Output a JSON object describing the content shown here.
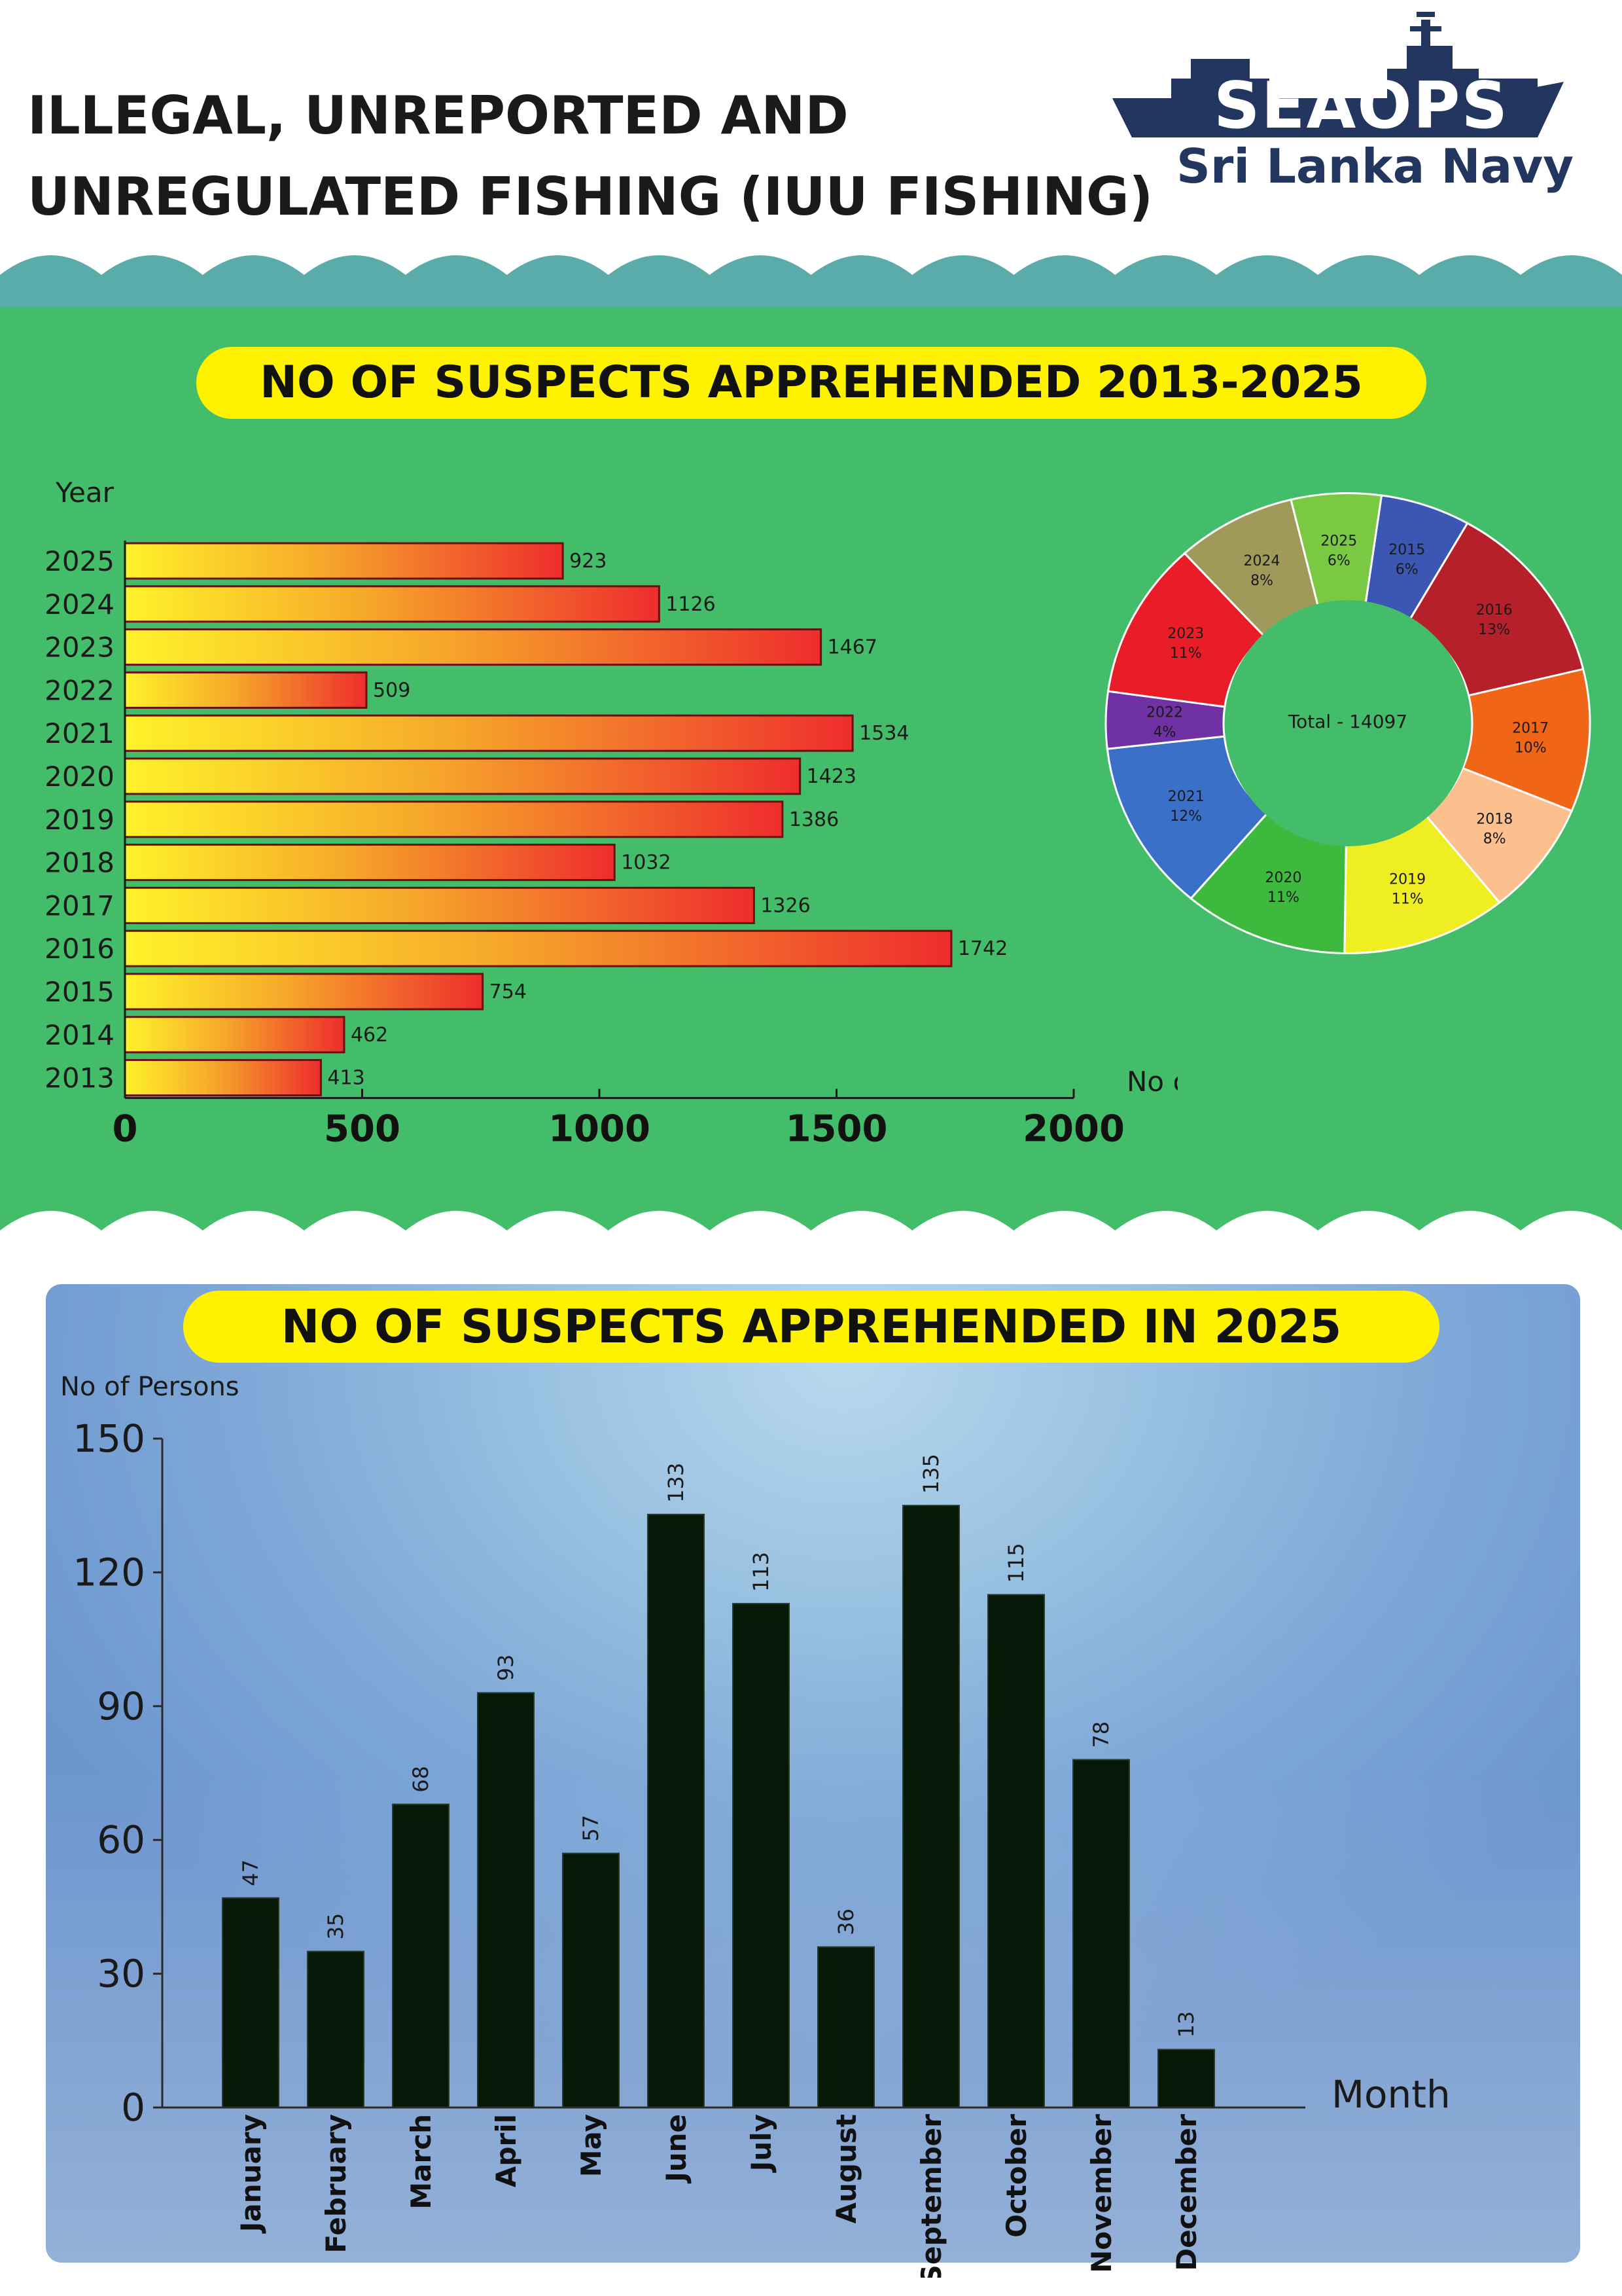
{
  "header": {
    "title_line1": "ILLEGAL, UNREPORTED AND",
    "title_line2": "UNREGULATED FISHING (IUU FISHING)",
    "logo_text": "SEAOPS",
    "logo_subtitle": "Sri Lanka Navy",
    "logo_icon": "navy-ship-icon"
  },
  "colors": {
    "green_background": "#44bd6a",
    "teal_wave": "#5aacaa",
    "pill_yellow": "#fff200",
    "bar_gradient_start": "#fff22a",
    "bar_gradient_end": "#ee2d2d",
    "month_bar": "#061806",
    "panel_blue": "#7fa8d8"
  },
  "chart_data": [
    {
      "type": "bar",
      "orientation": "horizontal",
      "title": "NO OF SUSPECTS APPREHENDED 2013-2025",
      "ylabel": "Year",
      "xlabel": "No of persons",
      "categories": [
        "2025",
        "2024",
        "2023",
        "2022",
        "2021",
        "2020",
        "2019",
        "2018",
        "2017",
        "2016",
        "2015",
        "2014",
        "2013"
      ],
      "values": [
        923,
        1126,
        1467,
        509,
        1534,
        1423,
        1386,
        1032,
        1326,
        1742,
        754,
        462,
        413
      ],
      "data_labels": [
        "923",
        "1126",
        "1467",
        "509",
        "1534",
        "1423",
        "1386",
        "1032",
        "1326",
        "1742",
        "754",
        "462",
        "413"
      ],
      "xlim": [
        0,
        2000
      ],
      "xticks": [
        "0",
        "500",
        "1000",
        "1500",
        "2000"
      ],
      "grid": false,
      "legend": false
    },
    {
      "type": "pie",
      "variant": "donut",
      "center_label": "Total - 14097",
      "slices": [
        {
          "label": "2015",
          "pct_label": "6%",
          "value": 6,
          "color": "#3b57b3"
        },
        {
          "label": "2016",
          "pct_label": "13%",
          "value": 13,
          "color": "#b5202a"
        },
        {
          "label": "2017",
          "pct_label": "10%",
          "value": 10,
          "color": "#f06516"
        },
        {
          "label": "2018",
          "pct_label": "8%",
          "value": 8,
          "color": "#fbc08d"
        },
        {
          "label": "2019",
          "pct_label": "11%",
          "value": 11,
          "color": "#eeee22"
        },
        {
          "label": "2020",
          "pct_label": "11%",
          "value": 11,
          "color": "#3dba3d"
        },
        {
          "label": "2021",
          "pct_label": "12%",
          "value": 12,
          "color": "#3b70c9"
        },
        {
          "label": "2022",
          "pct_label": "4%",
          "value": 4,
          "color": "#6f31a3"
        },
        {
          "label": "2023",
          "pct_label": "11%",
          "value": 11,
          "color": "#ea1c27"
        },
        {
          "label": "2024",
          "pct_label": "8%",
          "value": 8,
          "color": "#a09a5a"
        },
        {
          "label": "2025",
          "pct_label": "6%",
          "value": 6,
          "color": "#7ac943"
        }
      ],
      "legend": false
    },
    {
      "type": "bar",
      "orientation": "vertical",
      "title": "NO OF SUSPECTS APPREHENDED IN 2025",
      "ylabel": "No of Persons",
      "xlabel": "Month",
      "categories": [
        "January",
        "February",
        "March",
        "April",
        "May",
        "June",
        "July",
        "August",
        "September",
        "October",
        "November",
        "December"
      ],
      "values": [
        47,
        35,
        68,
        93,
        57,
        133,
        113,
        36,
        135,
        115,
        78,
        13
      ],
      "data_labels": [
        "47",
        "35",
        "68",
        "93",
        "57",
        "133",
        "113",
        "36",
        "135",
        "115",
        "78",
        "13"
      ],
      "ylim": [
        0,
        150
      ],
      "yticks": [
        "0",
        "30",
        "60",
        "90",
        "120",
        "150"
      ],
      "grid": false,
      "legend": false
    }
  ]
}
